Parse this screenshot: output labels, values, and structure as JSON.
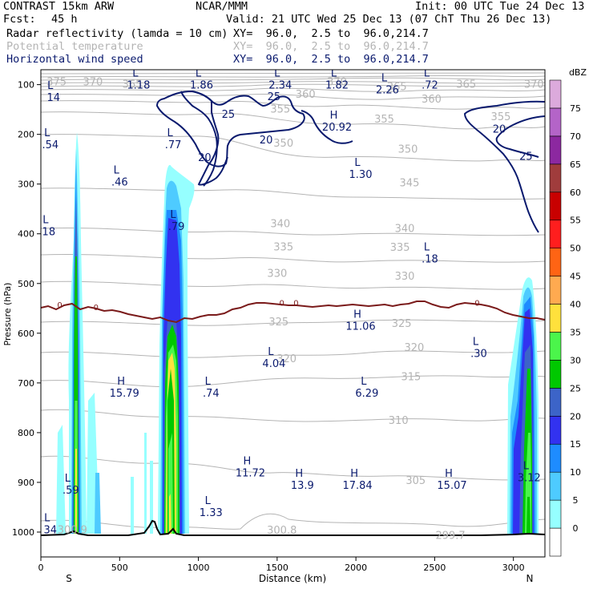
{
  "header": {
    "model": "CONTRAST 15km ARW",
    "org": "NCAR/MMM",
    "init": "Init: 00 UTC Tue 24 Dec 13",
    "fcst_label": "Fcst:",
    "fcst_value": "45 h",
    "valid": "Valid: 21 UTC Wed 25 Dec 13 (07 ChT Thu 26 Dec 13)",
    "fields": [
      {
        "name": "Radar reflectivity (lamda = 10 cm)",
        "xy": "XY=  96.0,  2.5 to  96.0,214.7",
        "color": "#000000"
      },
      {
        "name": "Potential temperature",
        "xy": "XY=  96.0,  2.5 to  96.0,214.7",
        "color": "#b4b4b4"
      },
      {
        "name": "Horizontal wind speed",
        "xy": "XY=  96.0,  2.5 to  96.0,214.7",
        "color": "#0a1a6e"
      }
    ]
  },
  "chart_data": {
    "type": "cross-section",
    "xlabel": "Distance (km)",
    "ylabel": "Pressure (hPa)",
    "xlim": [
      0,
      3200
    ],
    "ylim": [
      1050,
      70
    ],
    "x_ticks": [
      0,
      500,
      1000,
      1500,
      2000,
      2500,
      3000
    ],
    "y_ticks": [
      100,
      200,
      300,
      400,
      500,
      600,
      700,
      800,
      900,
      1000
    ],
    "end_labels": {
      "left": "S",
      "right": "N"
    },
    "colorbar": {
      "unit": "dBZ",
      "levels": [
        0,
        5,
        10,
        15,
        20,
        25,
        30,
        35,
        40,
        45,
        50,
        55,
        60,
        65,
        70,
        75
      ],
      "colors": [
        "#ffffff",
        "#96ffff",
        "#4ecbff",
        "#1e8cff",
        "#3232f0",
        "#3c64c8",
        "#00c800",
        "#4bf54b",
        "#ffe13c",
        "#ffaa50",
        "#ff6414",
        "#ff1e1e",
        "#c80000",
        "#a03c3c",
        "#8c28a0",
        "#b464c8",
        "#dcaadc"
      ]
    },
    "theta_labels": [
      {
        "text": "375",
        "x": 100,
        "p": 95
      },
      {
        "text": "370",
        "x": 330,
        "p": 95
      },
      {
        "text": "365",
        "x": 580,
        "p": 100
      },
      {
        "text": "360",
        "x": 1680,
        "p": 120
      },
      {
        "text": "370",
        "x": 1880,
        "p": 95
      },
      {
        "text": "365",
        "x": 2260,
        "p": 105
      },
      {
        "text": "360",
        "x": 2480,
        "p": 130
      },
      {
        "text": "365",
        "x": 2700,
        "p": 100
      },
      {
        "text": "370",
        "x": 3130,
        "p": 100
      },
      {
        "text": "355",
        "x": 1520,
        "p": 150
      },
      {
        "text": "355",
        "x": 2180,
        "p": 170
      },
      {
        "text": "355",
        "x": 2920,
        "p": 165
      },
      {
        "text": "350",
        "x": 1540,
        "p": 218
      },
      {
        "text": "350",
        "x": 2330,
        "p": 230
      },
      {
        "text": "345",
        "x": 2340,
        "p": 298
      },
      {
        "text": "340",
        "x": 1520,
        "p": 380
      },
      {
        "text": "340",
        "x": 2310,
        "p": 390
      },
      {
        "text": "335",
        "x": 1540,
        "p": 427
      },
      {
        "text": "335",
        "x": 2280,
        "p": 428
      },
      {
        "text": "330",
        "x": 1500,
        "p": 480
      },
      {
        "text": "330",
        "x": 2310,
        "p": 486
      },
      {
        "text": "325",
        "x": 1510,
        "p": 578
      },
      {
        "text": "325",
        "x": 2290,
        "p": 581
      },
      {
        "text": "320",
        "x": 1560,
        "p": 652
      },
      {
        "text": "320",
        "x": 2370,
        "p": 629
      },
      {
        "text": "315",
        "x": 2350,
        "p": 688
      },
      {
        "text": "310",
        "x": 2270,
        "p": 776
      },
      {
        "text": "305",
        "x": 2380,
        "p": 897
      },
      {
        "text": "300.8",
        "x": 1530,
        "p": 997
      },
      {
        "text": "299.7",
        "x": 2600,
        "p": 1007
      },
      {
        "text": "300.9",
        "x": 200,
        "p": 996
      }
    ],
    "wind_labels": [
      {
        "text": "25",
        "x": 1480,
        "p": 125
      },
      {
        "text": "25",
        "x": 1190,
        "p": 160
      },
      {
        "text": "20",
        "x": 1430,
        "p": 212
      },
      {
        "text": "20",
        "x": 1040,
        "p": 247
      },
      {
        "text": "20",
        "x": 2910,
        "p": 190
      },
      {
        "text": "25",
        "x": 3080,
        "p": 245
      }
    ],
    "zero_labels": [
      {
        "text": "0",
        "x": 120,
        "p": 542
      },
      {
        "text": "0",
        "x": 350,
        "p": 547
      },
      {
        "text": "0",
        "x": 1530,
        "p": 538
      },
      {
        "text": "0",
        "x": 1620,
        "p": 538
      },
      {
        "text": "0",
        "x": 2770,
        "p": 538
      }
    ],
    "extrema": [
      {
        "type": "L",
        "value": "1.18",
        "x": 620,
        "p": 90
      },
      {
        "type": "L",
        "value": "1.86",
        "x": 1020,
        "p": 90
      },
      {
        "type": "L",
        "value": "2.34",
        "x": 1520,
        "p": 90
      },
      {
        "type": "L",
        "value": "1.82",
        "x": 1880,
        "p": 90
      },
      {
        "type": "L",
        "value": "2.26",
        "x": 2200,
        "p": 100
      },
      {
        "type": "L",
        "value": ".72",
        "x": 2470,
        "p": 90
      },
      {
        "type": "L",
        "value": "14",
        "x": 80,
        "p": 115
      },
      {
        "type": "H",
        "value": "20.92",
        "x": 1880,
        "p": 175
      },
      {
        "type": "L",
        "value": ".54",
        "x": 60,
        "p": 210
      },
      {
        "type": "L",
        "value": ".77",
        "x": 840,
        "p": 210
      },
      {
        "type": "L",
        "value": ".46",
        "x": 500,
        "p": 285
      },
      {
        "type": "L",
        "value": "1.30",
        "x": 2030,
        "p": 270
      },
      {
        "type": "L",
        "value": "18",
        "x": 50,
        "p": 385
      },
      {
        "type": "L",
        "value": ".79",
        "x": 860,
        "p": 375
      },
      {
        "type": "L",
        "value": ".18",
        "x": 2470,
        "p": 440
      },
      {
        "type": "H",
        "value": "11.06",
        "x": 2030,
        "p": 575
      },
      {
        "type": "L",
        "value": ".30",
        "x": 2780,
        "p": 630
      },
      {
        "type": "L",
        "value": "4.04",
        "x": 1480,
        "p": 650
      },
      {
        "type": "H",
        "value": "15.79",
        "x": 530,
        "p": 710
      },
      {
        "type": "L",
        "value": ".74",
        "x": 1080,
        "p": 710
      },
      {
        "type": "L",
        "value": "6.29",
        "x": 2070,
        "p": 710
      },
      {
        "type": "H",
        "value": "11.72",
        "x": 1330,
        "p": 870
      },
      {
        "type": "H",
        "value": "13.9",
        "x": 1660,
        "p": 895
      },
      {
        "type": "H",
        "value": "17.84",
        "x": 2010,
        "p": 895
      },
      {
        "type": "H",
        "value": "15.07",
        "x": 2610,
        "p": 895
      },
      {
        "type": "L",
        "value": "3.12",
        "x": 3100,
        "p": 880
      },
      {
        "type": "L",
        "value": ".59",
        "x": 190,
        "p": 905
      },
      {
        "type": "L",
        "value": "1.33",
        "x": 1080,
        "p": 950
      },
      {
        "type": "L",
        "value": "34",
        "x": 60,
        "p": 985
      }
    ]
  }
}
